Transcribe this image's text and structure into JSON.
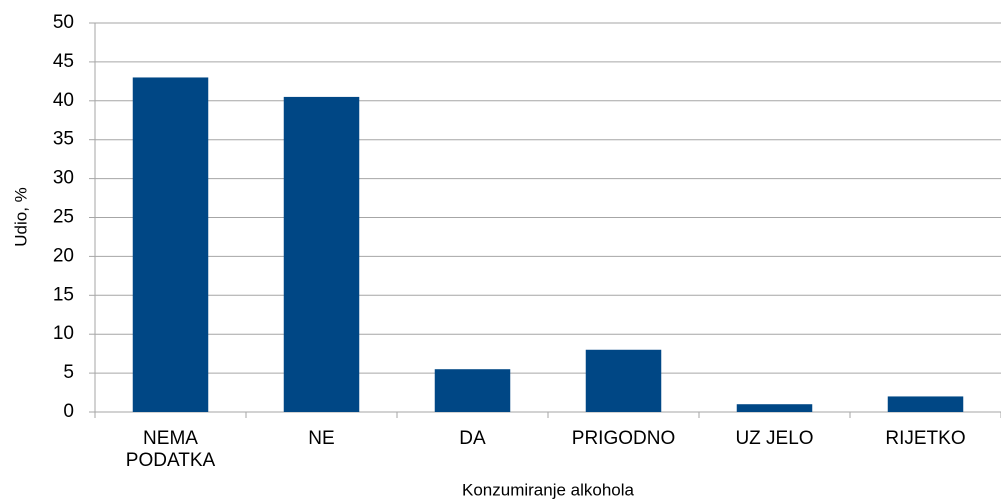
{
  "chart_data": {
    "type": "bar",
    "x_label": "Konzumiranje alkohola",
    "y_label": "Udio, %",
    "categories": [
      "NEMA PODATKA",
      "NE",
      "DA",
      "PRIGODNO",
      "UZ JELO",
      "RIJETKO"
    ],
    "values": [
      43,
      40.5,
      5.5,
      8,
      1,
      2
    ],
    "color": "#004785",
    "ylim": [
      0,
      50
    ],
    "yticks": [
      0,
      5,
      10,
      15,
      20,
      25,
      30,
      35,
      40,
      45,
      50
    ],
    "grid": true
  }
}
